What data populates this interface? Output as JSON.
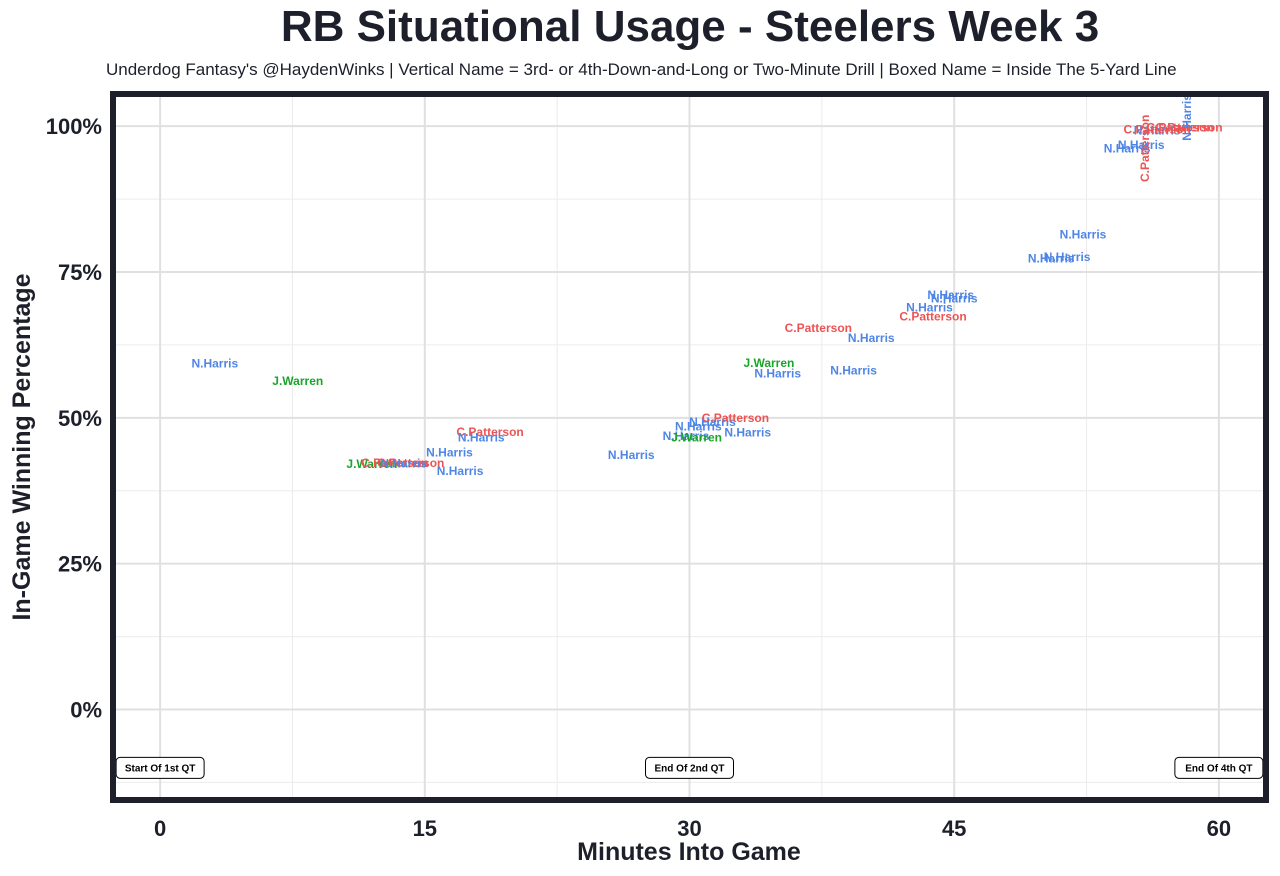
{
  "chart_data": {
    "type": "scatter",
    "title": "RB Situational Usage - Steelers Week 3",
    "subtitle": "Underdog Fantasy's @HaydenWinks | Vertical Name = 3rd- or 4th-Down-and-Long or Two-Minute Drill | Boxed Name = Inside The 5-Yard Line",
    "xlabel": "Minutes Into Game",
    "ylabel": "In-Game Winning Percentage",
    "xlim": [
      -2.5,
      62.5
    ],
    "ylim": [
      -15,
      105
    ],
    "x_ticks": [
      0,
      15,
      30,
      45,
      60
    ],
    "x_tick_labels": [
      "0",
      "15",
      "30",
      "45",
      "60"
    ],
    "y_ticks": [
      0,
      25,
      50,
      75,
      100
    ],
    "y_tick_labels": [
      "0%",
      "25%",
      "50%",
      "75%",
      "100%"
    ],
    "grid": true,
    "colors": {
      "N.Harris": "#4f86e6",
      "J.Warren": "#19a52a",
      "C.Patterson": "#ec5454"
    },
    "annotations": [
      {
        "x": 0,
        "y": -10,
        "label": "Start Of 1st QT"
      },
      {
        "x": 30,
        "y": -10,
        "label": "End Of 2nd QT"
      },
      {
        "x": 60,
        "y": -10,
        "label": "End Of 4th QT"
      }
    ],
    "points": [
      {
        "x": 3.1,
        "y": 59.3,
        "label": "N.Harris",
        "vertical": false
      },
      {
        "x": 7.8,
        "y": 56.3,
        "label": "J.Warren",
        "vertical": false
      },
      {
        "x": 12.0,
        "y": 42.1,
        "label": "J.Warren",
        "vertical": false
      },
      {
        "x": 13.3,
        "y": 42.3,
        "label": "C.Patterson",
        "vertical": false
      },
      {
        "x": 14.2,
        "y": 42.3,
        "label": "C.Patterson",
        "vertical": false
      },
      {
        "x": 13.8,
        "y": 42.2,
        "label": "N.Harris",
        "vertical": false
      },
      {
        "x": 16.4,
        "y": 44.1,
        "label": "N.Harris",
        "vertical": false
      },
      {
        "x": 17.0,
        "y": 40.9,
        "label": "N.Harris",
        "vertical": false
      },
      {
        "x": 18.7,
        "y": 47.6,
        "label": "C.Patterson",
        "vertical": false
      },
      {
        "x": 18.2,
        "y": 46.6,
        "label": "N.Harris",
        "vertical": false
      },
      {
        "x": 26.7,
        "y": 43.6,
        "label": "N.Harris",
        "vertical": false
      },
      {
        "x": 29.8,
        "y": 46.9,
        "label": "N.Harris",
        "vertical": false
      },
      {
        "x": 30.4,
        "y": 46.6,
        "label": "J.Warren",
        "vertical": false
      },
      {
        "x": 30.5,
        "y": 48.5,
        "label": "N.Harris",
        "vertical": false
      },
      {
        "x": 31.3,
        "y": 49.3,
        "label": "N.Harris",
        "vertical": false
      },
      {
        "x": 32.6,
        "y": 50.0,
        "label": "C.Patterson",
        "vertical": false
      },
      {
        "x": 33.3,
        "y": 47.5,
        "label": "N.Harris",
        "vertical": false
      },
      {
        "x": 34.5,
        "y": 59.4,
        "label": "J.Warren",
        "vertical": false
      },
      {
        "x": 35.0,
        "y": 57.6,
        "label": "N.Harris",
        "vertical": false
      },
      {
        "x": 37.3,
        "y": 65.4,
        "label": "C.Patterson",
        "vertical": false
      },
      {
        "x": 39.3,
        "y": 58.1,
        "label": "N.Harris",
        "vertical": false
      },
      {
        "x": 40.3,
        "y": 63.7,
        "label": "N.Harris",
        "vertical": false
      },
      {
        "x": 43.6,
        "y": 68.9,
        "label": "N.Harris",
        "vertical": false
      },
      {
        "x": 43.8,
        "y": 67.4,
        "label": "C.Patterson",
        "vertical": false
      },
      {
        "x": 44.8,
        "y": 71.1,
        "label": "N.Harris",
        "vertical": false
      },
      {
        "x": 45.0,
        "y": 70.5,
        "label": "N.Harris",
        "vertical": false
      },
      {
        "x": 50.5,
        "y": 77.3,
        "label": "N.Harris",
        "vertical": false
      },
      {
        "x": 51.4,
        "y": 77.6,
        "label": "N.Harris",
        "vertical": false
      },
      {
        "x": 52.3,
        "y": 81.4,
        "label": "N.Harris",
        "vertical": false
      },
      {
        "x": 54.8,
        "y": 96.2,
        "label": "N.Harris",
        "vertical": false
      },
      {
        "x": 55.6,
        "y": 96.8,
        "label": "N.Harris",
        "vertical": false
      },
      {
        "x": 55.8,
        "y": 96.2,
        "label": "C.Patterson",
        "vertical": true
      },
      {
        "x": 56.5,
        "y": 99.3,
        "label": "N.Harris",
        "vertical": false
      },
      {
        "x": 56.5,
        "y": 99.4,
        "label": "C.Patterson",
        "vertical": false
      },
      {
        "x": 57.8,
        "y": 99.8,
        "label": "C.Patterson",
        "vertical": false
      },
      {
        "x": 58.3,
        "y": 99.8,
        "label": "C.Patterson",
        "vertical": false
      },
      {
        "x": 58.2,
        "y": 101.5,
        "label": "N.Harris",
        "vertical": true
      }
    ]
  }
}
